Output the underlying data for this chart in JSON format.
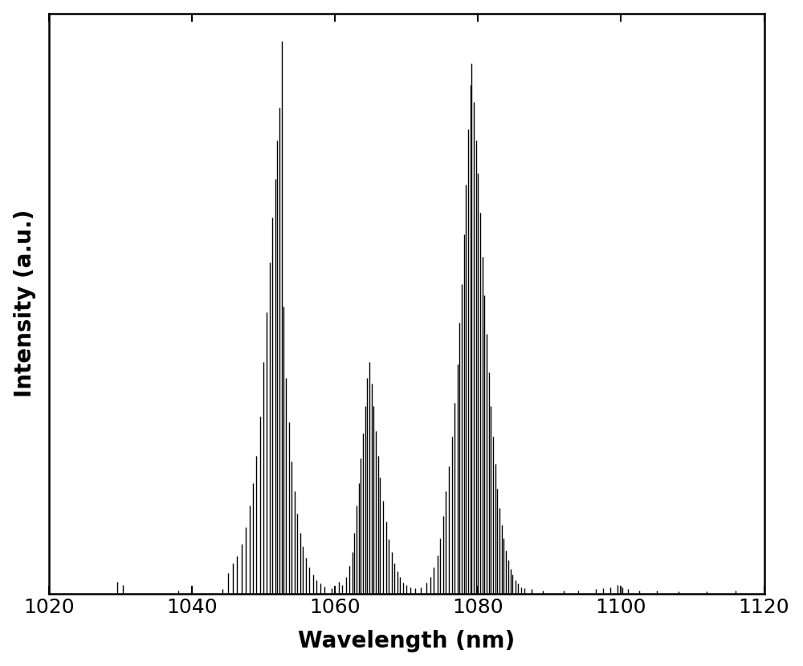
{
  "title": "",
  "xlabel": "Wavelength (nm)",
  "ylabel": "Intensity (a.u.)",
  "xlim": [
    1020,
    1120
  ],
  "ylim": [
    0,
    1.05
  ],
  "xticks": [
    1020,
    1040,
    1060,
    1080,
    1100,
    1120
  ],
  "xlabel_fontsize": 20,
  "ylabel_fontsize": 20,
  "tick_fontsize": 18,
  "linewidth": 1.0,
  "background_color": "#ffffff",
  "line_color": "#000000",
  "peaks": [
    [
      1029.5,
      0.022
    ],
    [
      1030.3,
      0.015
    ],
    [
      1038.0,
      0.006
    ],
    [
      1044.2,
      0.008
    ],
    [
      1045.0,
      0.038
    ],
    [
      1045.7,
      0.055
    ],
    [
      1046.3,
      0.068
    ],
    [
      1046.9,
      0.09
    ],
    [
      1047.5,
      0.12
    ],
    [
      1048.0,
      0.16
    ],
    [
      1048.5,
      0.2
    ],
    [
      1049.0,
      0.25
    ],
    [
      1049.5,
      0.32
    ],
    [
      1050.0,
      0.42
    ],
    [
      1050.4,
      0.51
    ],
    [
      1050.8,
      0.6
    ],
    [
      1051.2,
      0.68
    ],
    [
      1051.6,
      0.75
    ],
    [
      1051.9,
      0.82
    ],
    [
      1052.2,
      0.88
    ],
    [
      1052.5,
      1.0
    ],
    [
      1052.8,
      0.52
    ],
    [
      1053.1,
      0.39
    ],
    [
      1053.5,
      0.31
    ],
    [
      1053.9,
      0.24
    ],
    [
      1054.3,
      0.185
    ],
    [
      1054.7,
      0.145
    ],
    [
      1055.1,
      0.11
    ],
    [
      1055.5,
      0.085
    ],
    [
      1055.9,
      0.065
    ],
    [
      1056.4,
      0.048
    ],
    [
      1056.9,
      0.035
    ],
    [
      1057.4,
      0.025
    ],
    [
      1057.9,
      0.018
    ],
    [
      1058.5,
      0.013
    ],
    [
      1059.5,
      0.01
    ],
    [
      1060.5,
      0.022
    ],
    [
      1061.0,
      0.015
    ],
    [
      1061.5,
      0.03
    ],
    [
      1062.0,
      0.05
    ],
    [
      1062.4,
      0.075
    ],
    [
      1062.7,
      0.11
    ],
    [
      1063.0,
      0.16
    ],
    [
      1063.3,
      0.2
    ],
    [
      1063.6,
      0.245
    ],
    [
      1063.9,
      0.29
    ],
    [
      1064.2,
      0.34
    ],
    [
      1064.5,
      0.39
    ],
    [
      1064.8,
      0.42
    ],
    [
      1065.1,
      0.38
    ],
    [
      1065.4,
      0.34
    ],
    [
      1065.7,
      0.295
    ],
    [
      1066.0,
      0.25
    ],
    [
      1066.3,
      0.21
    ],
    [
      1066.7,
      0.168
    ],
    [
      1067.1,
      0.13
    ],
    [
      1067.5,
      0.098
    ],
    [
      1067.9,
      0.075
    ],
    [
      1068.3,
      0.055
    ],
    [
      1068.7,
      0.04
    ],
    [
      1069.1,
      0.03
    ],
    [
      1069.5,
      0.02
    ],
    [
      1070.0,
      0.015
    ],
    [
      1070.5,
      0.012
    ],
    [
      1071.2,
      0.01
    ],
    [
      1072.0,
      0.012
    ],
    [
      1072.8,
      0.02
    ],
    [
      1073.3,
      0.03
    ],
    [
      1073.8,
      0.048
    ],
    [
      1074.3,
      0.07
    ],
    [
      1074.7,
      0.1
    ],
    [
      1075.1,
      0.14
    ],
    [
      1075.5,
      0.185
    ],
    [
      1075.9,
      0.23
    ],
    [
      1076.3,
      0.285
    ],
    [
      1076.7,
      0.345
    ],
    [
      1077.1,
      0.415
    ],
    [
      1077.4,
      0.49
    ],
    [
      1077.7,
      0.56
    ],
    [
      1078.0,
      0.65
    ],
    [
      1078.3,
      0.74
    ],
    [
      1078.6,
      0.84
    ],
    [
      1078.9,
      0.92
    ],
    [
      1079.1,
      0.96
    ],
    [
      1079.4,
      0.89
    ],
    [
      1079.7,
      0.82
    ],
    [
      1080.0,
      0.76
    ],
    [
      1080.3,
      0.69
    ],
    [
      1080.6,
      0.61
    ],
    [
      1080.9,
      0.54
    ],
    [
      1081.2,
      0.47
    ],
    [
      1081.5,
      0.4
    ],
    [
      1081.8,
      0.34
    ],
    [
      1082.1,
      0.285
    ],
    [
      1082.4,
      0.235
    ],
    [
      1082.7,
      0.19
    ],
    [
      1083.0,
      0.155
    ],
    [
      1083.3,
      0.125
    ],
    [
      1083.6,
      0.1
    ],
    [
      1083.9,
      0.078
    ],
    [
      1084.2,
      0.06
    ],
    [
      1084.5,
      0.045
    ],
    [
      1084.8,
      0.035
    ],
    [
      1085.2,
      0.025
    ],
    [
      1085.6,
      0.018
    ],
    [
      1086.0,
      0.012
    ],
    [
      1086.5,
      0.01
    ],
    [
      1087.5,
      0.008
    ],
    [
      1089.0,
      0.006
    ],
    [
      1092.0,
      0.005
    ],
    [
      1094.0,
      0.006
    ],
    [
      1096.5,
      0.008
    ],
    [
      1097.5,
      0.01
    ],
    [
      1098.5,
      0.012
    ],
    [
      1099.5,
      0.015
    ],
    [
      1100.2,
      0.012
    ],
    [
      1101.0,
      0.008
    ],
    [
      1102.5,
      0.006
    ],
    [
      1105.0,
      0.005
    ],
    [
      1108.0,
      0.004
    ],
    [
      1112.0,
      0.004
    ],
    [
      1116.0,
      0.005
    ]
  ]
}
